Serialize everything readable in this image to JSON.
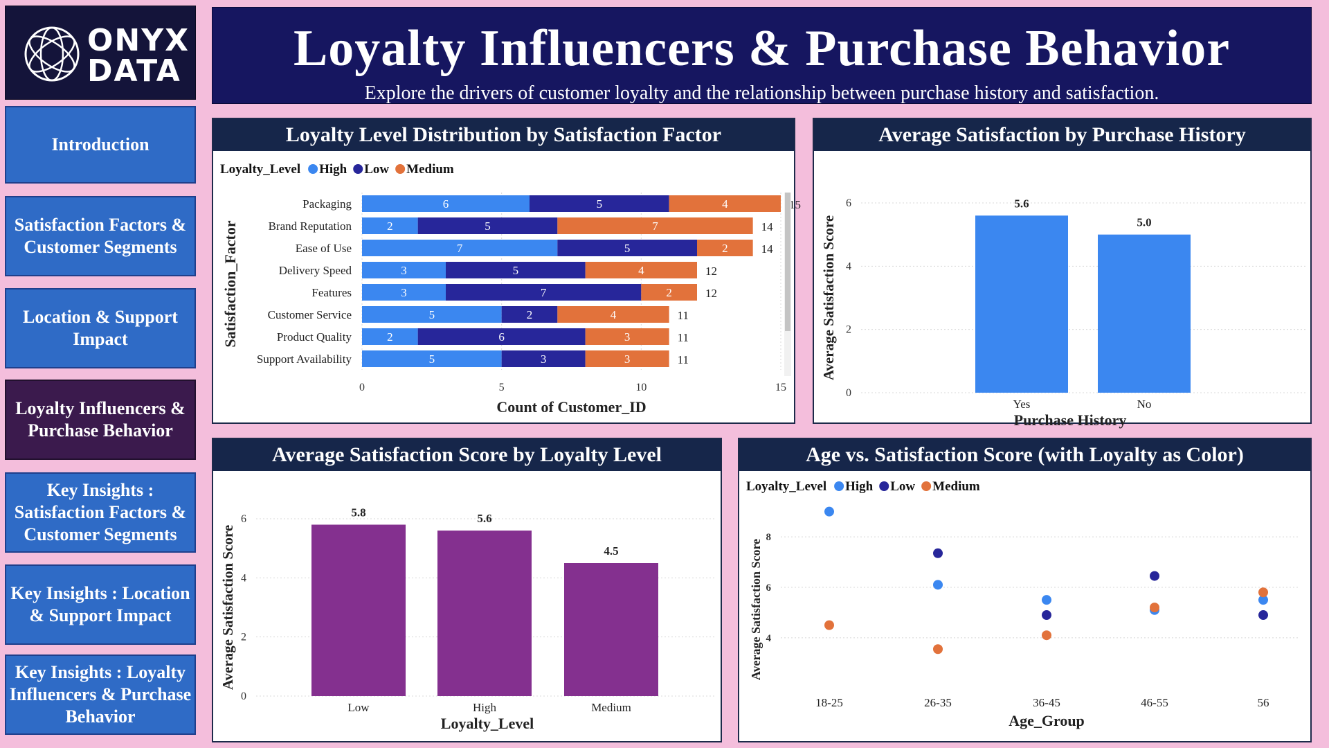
{
  "logo": {
    "line1": "ONYX",
    "line2": "DATA",
    "icon": "globe-logo-icon"
  },
  "nav": [
    {
      "label": "Introduction",
      "active": false
    },
    {
      "label": "Satisfaction Factors & Customer Segments",
      "active": false
    },
    {
      "label": "Location & Support Impact",
      "active": false
    },
    {
      "label": "Loyalty Influencers & Purchase Behavior",
      "active": true
    },
    {
      "label": "Key Insights : Satisfaction Factors & Customer Segments",
      "active": false
    },
    {
      "label": "Key Insights : Location & Support Impact",
      "active": false
    },
    {
      "label": "Key Insights : Loyalty Influencers & Purchase Behavior",
      "active": false
    }
  ],
  "header": {
    "title": "Loyalty Influencers & Purchase Behavior",
    "subtitle": "Explore the drivers of customer loyalty and the relationship between purchase history and satisfaction."
  },
  "colors": {
    "high": "#3b87f0",
    "low": "#27269a",
    "medium": "#e2723b",
    "purple": "#84308f",
    "blue": "#3b87f0"
  },
  "legend": {
    "field": "Loyalty_Level",
    "high": "High",
    "low": "Low",
    "medium": "Medium"
  },
  "chart_data": [
    {
      "type": "bar",
      "orientation": "horizontal",
      "stacked": true,
      "title": "Loyalty Level Distribution by Satisfaction Factor",
      "xlabel": "Count of Customer_ID",
      "ylabel": "Satisfaction_Factor",
      "legend_title": "Loyalty_Level",
      "categories": [
        "Packaging",
        "Brand Reputation",
        "Ease of Use",
        "Delivery Speed",
        "Features",
        "Customer Service",
        "Product Quality",
        "Support Availability"
      ],
      "series": [
        {
          "name": "High",
          "values": [
            6,
            2,
            7,
            3,
            3,
            5,
            2,
            5
          ]
        },
        {
          "name": "Low",
          "values": [
            5,
            5,
            5,
            5,
            7,
            2,
            6,
            3
          ]
        },
        {
          "name": "Medium",
          "values": [
            4,
            7,
            2,
            4,
            2,
            4,
            3,
            3
          ]
        }
      ],
      "totals": [
        15,
        14,
        14,
        12,
        12,
        11,
        11,
        11
      ],
      "xlim": [
        0,
        15
      ],
      "xticks": [
        0,
        5,
        10,
        15
      ],
      "legend_position": "top-left"
    },
    {
      "type": "bar",
      "title": "Average Satisfaction by Purchase History",
      "xlabel": "Purchase History",
      "ylabel": "Average Satisfaction Score",
      "categories": [
        "Yes",
        "No"
      ],
      "values": [
        5.6,
        5.0
      ],
      "labels": [
        "5.6",
        "5.0"
      ],
      "ylim": [
        0,
        6
      ],
      "yticks": [
        0,
        2,
        4,
        6
      ]
    },
    {
      "type": "bar",
      "title": "Average Satisfaction Score by Loyalty Level",
      "xlabel": "Loyalty_Level",
      "ylabel": "Average Satisfaction Score",
      "categories": [
        "Low",
        "High",
        "Medium"
      ],
      "values": [
        5.8,
        5.6,
        4.5
      ],
      "labels": [
        "5.8",
        "5.6",
        "4.5"
      ],
      "ylim": [
        0,
        6
      ],
      "yticks": [
        0,
        2,
        4,
        6
      ]
    },
    {
      "type": "scatter",
      "title": "Age vs. Satisfaction Score (with Loyalty as Color)",
      "xlabel": "Age_Group",
      "ylabel": "Average Satisfaction Score",
      "legend_title": "Loyalty_Level",
      "categories": [
        "18-25",
        "26-35",
        "36-45",
        "46-55",
        "56"
      ],
      "ylim": [
        3.2,
        9.1
      ],
      "yticks": [
        4,
        6,
        8
      ],
      "series": [
        {
          "name": "High",
          "values": [
            9.0,
            6.1,
            5.5,
            5.1,
            5.5
          ]
        },
        {
          "name": "Low",
          "values": [
            null,
            7.35,
            4.9,
            6.45,
            4.9
          ]
        },
        {
          "name": "Medium",
          "values": [
            4.5,
            3.55,
            4.1,
            5.2,
            5.8
          ]
        }
      ],
      "legend_position": "top-left"
    }
  ]
}
